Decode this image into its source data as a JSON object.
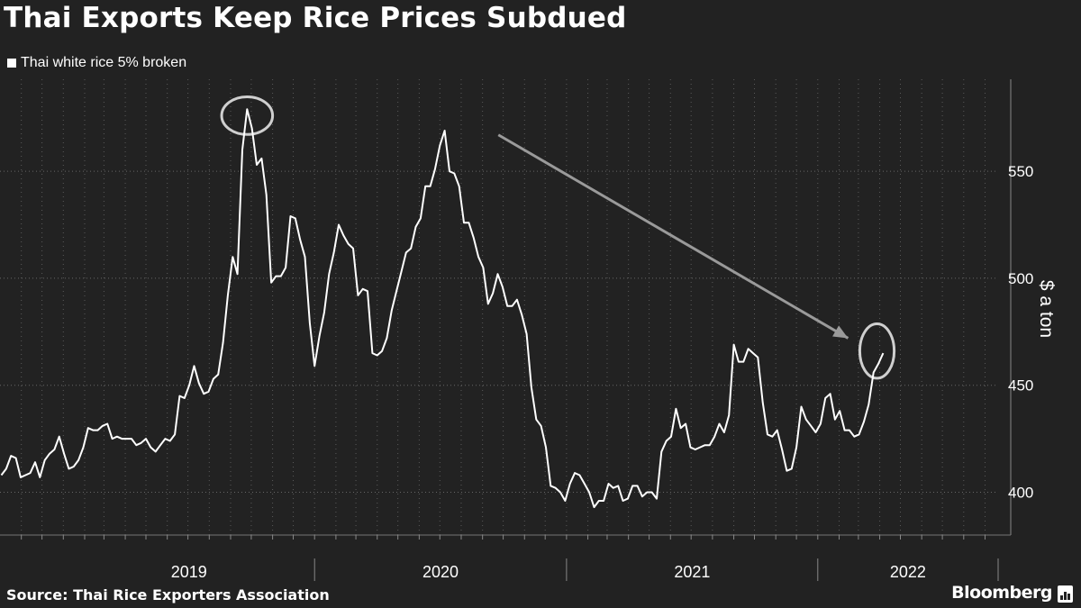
{
  "title": "Thai Exports Keep Rice Prices Subdued",
  "legend": "Thai white rice 5% broken",
  "source": "Source: Thai Rice Exporters Association",
  "brand": "Bloomberg",
  "colors": {
    "background": "#222222",
    "line": "#ffffff",
    "annotation": "#cfcfcf",
    "grid": "#666666"
  },
  "chart_data": {
    "type": "line",
    "ylabel": "$ a ton",
    "ylim": [
      380,
      593
    ],
    "yticks": [
      400,
      450,
      500,
      550
    ],
    "x_range": [
      "2018-10-01",
      "2022-09-20"
    ],
    "year_labels": [
      {
        "label": "2019",
        "start": "2019-01-01",
        "end": "2020-01-01"
      },
      {
        "label": "2020",
        "start": "2020-01-01",
        "end": "2021-01-01"
      },
      {
        "label": "2021",
        "start": "2021-01-01",
        "end": "2022-01-01"
      },
      {
        "label": "2022",
        "start": "2022-01-01",
        "end": "2022-09-20"
      }
    ],
    "series": [
      {
        "name": "Thai white rice 5% broken",
        "points": [
          [
            "2018-10-03",
            408
          ],
          [
            "2018-10-10",
            411
          ],
          [
            "2018-10-17",
            417
          ],
          [
            "2018-10-24",
            416
          ],
          [
            "2018-10-31",
            407
          ],
          [
            "2018-11-07",
            408
          ],
          [
            "2018-11-14",
            409
          ],
          [
            "2018-11-21",
            414
          ],
          [
            "2018-11-28",
            407
          ],
          [
            "2018-12-05",
            415
          ],
          [
            "2018-12-12",
            418
          ],
          [
            "2018-12-19",
            420
          ],
          [
            "2018-12-26",
            426
          ],
          [
            "2019-01-02",
            418
          ],
          [
            "2019-01-09",
            411
          ],
          [
            "2019-01-16",
            412
          ],
          [
            "2019-01-23",
            415
          ],
          [
            "2019-01-30",
            421
          ],
          [
            "2019-02-06",
            430
          ],
          [
            "2019-02-13",
            429
          ],
          [
            "2019-02-20",
            429
          ],
          [
            "2019-02-27",
            431
          ],
          [
            "2019-03-06",
            432
          ],
          [
            "2019-03-13",
            425
          ],
          [
            "2019-03-20",
            426
          ],
          [
            "2019-03-27",
            425
          ],
          [
            "2019-04-03",
            425
          ],
          [
            "2019-04-10",
            425
          ],
          [
            "2019-04-17",
            422
          ],
          [
            "2019-04-24",
            423
          ],
          [
            "2019-05-01",
            425
          ],
          [
            "2019-05-08",
            421
          ],
          [
            "2019-05-15",
            419
          ],
          [
            "2019-05-22",
            422
          ],
          [
            "2019-05-29",
            425
          ],
          [
            "2019-06-05",
            424
          ],
          [
            "2019-06-12",
            427
          ],
          [
            "2019-06-19",
            445
          ],
          [
            "2019-06-26",
            444
          ],
          [
            "2019-07-03",
            450
          ],
          [
            "2019-07-10",
            459
          ],
          [
            "2019-07-17",
            451
          ],
          [
            "2019-07-24",
            446
          ],
          [
            "2019-07-31",
            447
          ],
          [
            "2019-08-07",
            453
          ],
          [
            "2019-08-14",
            455
          ],
          [
            "2019-08-21",
            470
          ],
          [
            "2019-08-28",
            492
          ],
          [
            "2019-09-04",
            510
          ],
          [
            "2019-09-11",
            502
          ],
          [
            "2019-09-18",
            560
          ],
          [
            "2019-09-25",
            579
          ],
          [
            "2019-10-02",
            570
          ],
          [
            "2019-10-09",
            553
          ],
          [
            "2019-10-16",
            556
          ],
          [
            "2019-10-23",
            539
          ],
          [
            "2019-10-30",
            498
          ],
          [
            "2019-11-06",
            501
          ],
          [
            "2019-11-13",
            501
          ],
          [
            "2019-11-20",
            505
          ],
          [
            "2019-11-27",
            529
          ],
          [
            "2019-12-04",
            528
          ],
          [
            "2019-12-11",
            518
          ],
          [
            "2019-12-18",
            510
          ],
          [
            "2019-12-25",
            479
          ],
          [
            "2020-01-01",
            459
          ],
          [
            "2020-01-08",
            473
          ],
          [
            "2020-01-15",
            484
          ],
          [
            "2020-01-22",
            502
          ],
          [
            "2020-01-29",
            512
          ],
          [
            "2020-02-05",
            525
          ],
          [
            "2020-02-12",
            520
          ],
          [
            "2020-02-19",
            516
          ],
          [
            "2020-02-26",
            514
          ],
          [
            "2020-03-04",
            492
          ],
          [
            "2020-03-11",
            495
          ],
          [
            "2020-03-18",
            494
          ],
          [
            "2020-03-25",
            465
          ],
          [
            "2020-04-01",
            464
          ],
          [
            "2020-04-08",
            466
          ],
          [
            "2020-04-15",
            472
          ],
          [
            "2020-04-22",
            485
          ],
          [
            "2020-04-29",
            494
          ],
          [
            "2020-05-06",
            503
          ],
          [
            "2020-05-13",
            512
          ],
          [
            "2020-05-20",
            514
          ],
          [
            "2020-05-27",
            524
          ],
          [
            "2020-06-03",
            528
          ],
          [
            "2020-06-10",
            543
          ],
          [
            "2020-06-17",
            543
          ],
          [
            "2020-06-24",
            551
          ],
          [
            "2020-07-01",
            562
          ],
          [
            "2020-07-08",
            569
          ],
          [
            "2020-07-15",
            550
          ],
          [
            "2020-07-22",
            549
          ],
          [
            "2020-07-29",
            543
          ],
          [
            "2020-08-05",
            526
          ],
          [
            "2020-08-12",
            526
          ],
          [
            "2020-08-19",
            519
          ],
          [
            "2020-08-26",
            510
          ],
          [
            "2020-09-02",
            505
          ],
          [
            "2020-09-09",
            488
          ],
          [
            "2020-09-16",
            493
          ],
          [
            "2020-09-23",
            502
          ],
          [
            "2020-09-30",
            496
          ],
          [
            "2020-10-07",
            487
          ],
          [
            "2020-10-14",
            487
          ],
          [
            "2020-10-21",
            490
          ],
          [
            "2020-10-28",
            483
          ],
          [
            "2020-11-04",
            474
          ],
          [
            "2020-11-11",
            449
          ],
          [
            "2020-11-18",
            434
          ],
          [
            "2020-11-25",
            431
          ],
          [
            "2020-12-02",
            421
          ],
          [
            "2020-12-09",
            403
          ],
          [
            "2020-12-16",
            402
          ],
          [
            "2020-12-23",
            400
          ],
          [
            "2020-12-30",
            396
          ],
          [
            "2021-01-06",
            404
          ],
          [
            "2021-01-13",
            409
          ],
          [
            "2021-01-20",
            408
          ],
          [
            "2021-01-27",
            404
          ],
          [
            "2021-02-03",
            400
          ],
          [
            "2021-02-10",
            393
          ],
          [
            "2021-02-17",
            396
          ],
          [
            "2021-02-24",
            396
          ],
          [
            "2021-03-03",
            404
          ],
          [
            "2021-03-10",
            402
          ],
          [
            "2021-03-17",
            403
          ],
          [
            "2021-03-24",
            396
          ],
          [
            "2021-03-31",
            397
          ],
          [
            "2021-04-07",
            403
          ],
          [
            "2021-04-14",
            403
          ],
          [
            "2021-04-21",
            398
          ],
          [
            "2021-04-28",
            400
          ],
          [
            "2021-05-05",
            400
          ],
          [
            "2021-05-12",
            397
          ],
          [
            "2021-05-19",
            419
          ],
          [
            "2021-05-26",
            424
          ],
          [
            "2021-06-02",
            426
          ],
          [
            "2021-06-09",
            439
          ],
          [
            "2021-06-16",
            430
          ],
          [
            "2021-06-23",
            432
          ],
          [
            "2021-06-30",
            421
          ],
          [
            "2021-07-07",
            420
          ],
          [
            "2021-07-14",
            421
          ],
          [
            "2021-07-21",
            422
          ],
          [
            "2021-07-28",
            422
          ],
          [
            "2021-08-04",
            426
          ],
          [
            "2021-08-11",
            432
          ],
          [
            "2021-08-18",
            428
          ],
          [
            "2021-08-25",
            436
          ],
          [
            "2021-09-01",
            469
          ],
          [
            "2021-09-08",
            461
          ],
          [
            "2021-09-15",
            461
          ],
          [
            "2021-09-22",
            467
          ],
          [
            "2021-09-29",
            465
          ],
          [
            "2021-10-06",
            463
          ],
          [
            "2021-10-13",
            442
          ],
          [
            "2021-10-20",
            427
          ],
          [
            "2021-10-27",
            426
          ],
          [
            "2021-11-03",
            429
          ],
          [
            "2021-11-10",
            420
          ],
          [
            "2021-11-17",
            410
          ],
          [
            "2021-11-24",
            411
          ],
          [
            "2021-12-01",
            421
          ],
          [
            "2021-12-08",
            440
          ],
          [
            "2021-12-15",
            434
          ],
          [
            "2021-12-22",
            431
          ],
          [
            "2021-12-29",
            428
          ],
          [
            "2022-01-05",
            432
          ],
          [
            "2022-01-12",
            444
          ],
          [
            "2022-01-19",
            446
          ],
          [
            "2022-01-26",
            434
          ],
          [
            "2022-02-02",
            438
          ],
          [
            "2022-02-09",
            429
          ],
          [
            "2022-02-16",
            429
          ],
          [
            "2022-02-23",
            426
          ],
          [
            "2022-03-02",
            427
          ],
          [
            "2022-03-09",
            433
          ],
          [
            "2022-03-16",
            441
          ],
          [
            "2022-03-23",
            456
          ],
          [
            "2022-03-30",
            460
          ],
          [
            "2022-04-06",
            465
          ]
        ]
      }
    ],
    "annotations": [
      {
        "type": "ellipse",
        "x": "2019-09-25",
        "y": 576,
        "rx_days": 37,
        "ry_value": 8.8
      },
      {
        "type": "ellipse",
        "x": "2022-03-28",
        "y": 466,
        "rx_days": 25,
        "ry_value": 12.7
      },
      {
        "type": "arrow",
        "from": [
          "2020-09-24",
          567
        ],
        "to": [
          "2022-02-14",
          472
        ]
      }
    ]
  }
}
